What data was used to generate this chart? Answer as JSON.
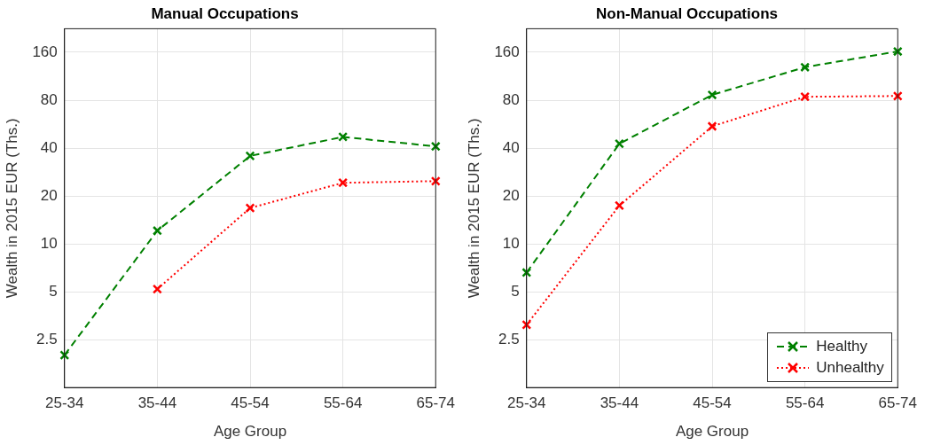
{
  "chart_data": [
    {
      "type": "line",
      "title": "Manual Occupations",
      "xlabel": "Age Group",
      "ylabel": "Wealth in 2015 EUR (Ths.)",
      "categories": [
        "25-34",
        "35-44",
        "45-54",
        "55-64",
        "65-74"
      ],
      "log": "y",
      "ylim": [
        1.25,
        225
      ],
      "yticks": [
        2.5,
        5,
        10,
        20,
        40,
        80,
        160
      ],
      "grid": true,
      "legend": false,
      "marker": "cross",
      "series": [
        {
          "color": "#008000",
          "line_style": "dashed",
          "values": [
            2.0,
            12.1,
            35.7,
            47,
            41
          ]
        },
        {
          "color": "#ff0000",
          "line_style": "dotted",
          "values": [
            null,
            5.2,
            16.8,
            24.2,
            24.8
          ]
        }
      ]
    },
    {
      "type": "line",
      "title": "Non-Manual Occupations",
      "xlabel": "Age Group",
      "ylabel": "Wealth in 2015 EUR (Ths.)",
      "categories": [
        "25-34",
        "35-44",
        "45-54",
        "55-64",
        "65-74"
      ],
      "log": "y",
      "ylim": [
        1.25,
        225
      ],
      "yticks": [
        2.5,
        5,
        10,
        20,
        40,
        80,
        160
      ],
      "grid": true,
      "legend": "bottom right",
      "marker": "cross",
      "series": [
        {
          "name": "Healthy",
          "color": "#008000",
          "line_style": "dashed",
          "values": [
            6.6,
            42.6,
            86.4,
            129,
            162
          ]
        },
        {
          "name": "Unhealthy",
          "color": "#ff0000",
          "line_style": "dotted",
          "values": [
            3.1,
            17.4,
            54.8,
            84,
            85
          ]
        }
      ]
    }
  ]
}
